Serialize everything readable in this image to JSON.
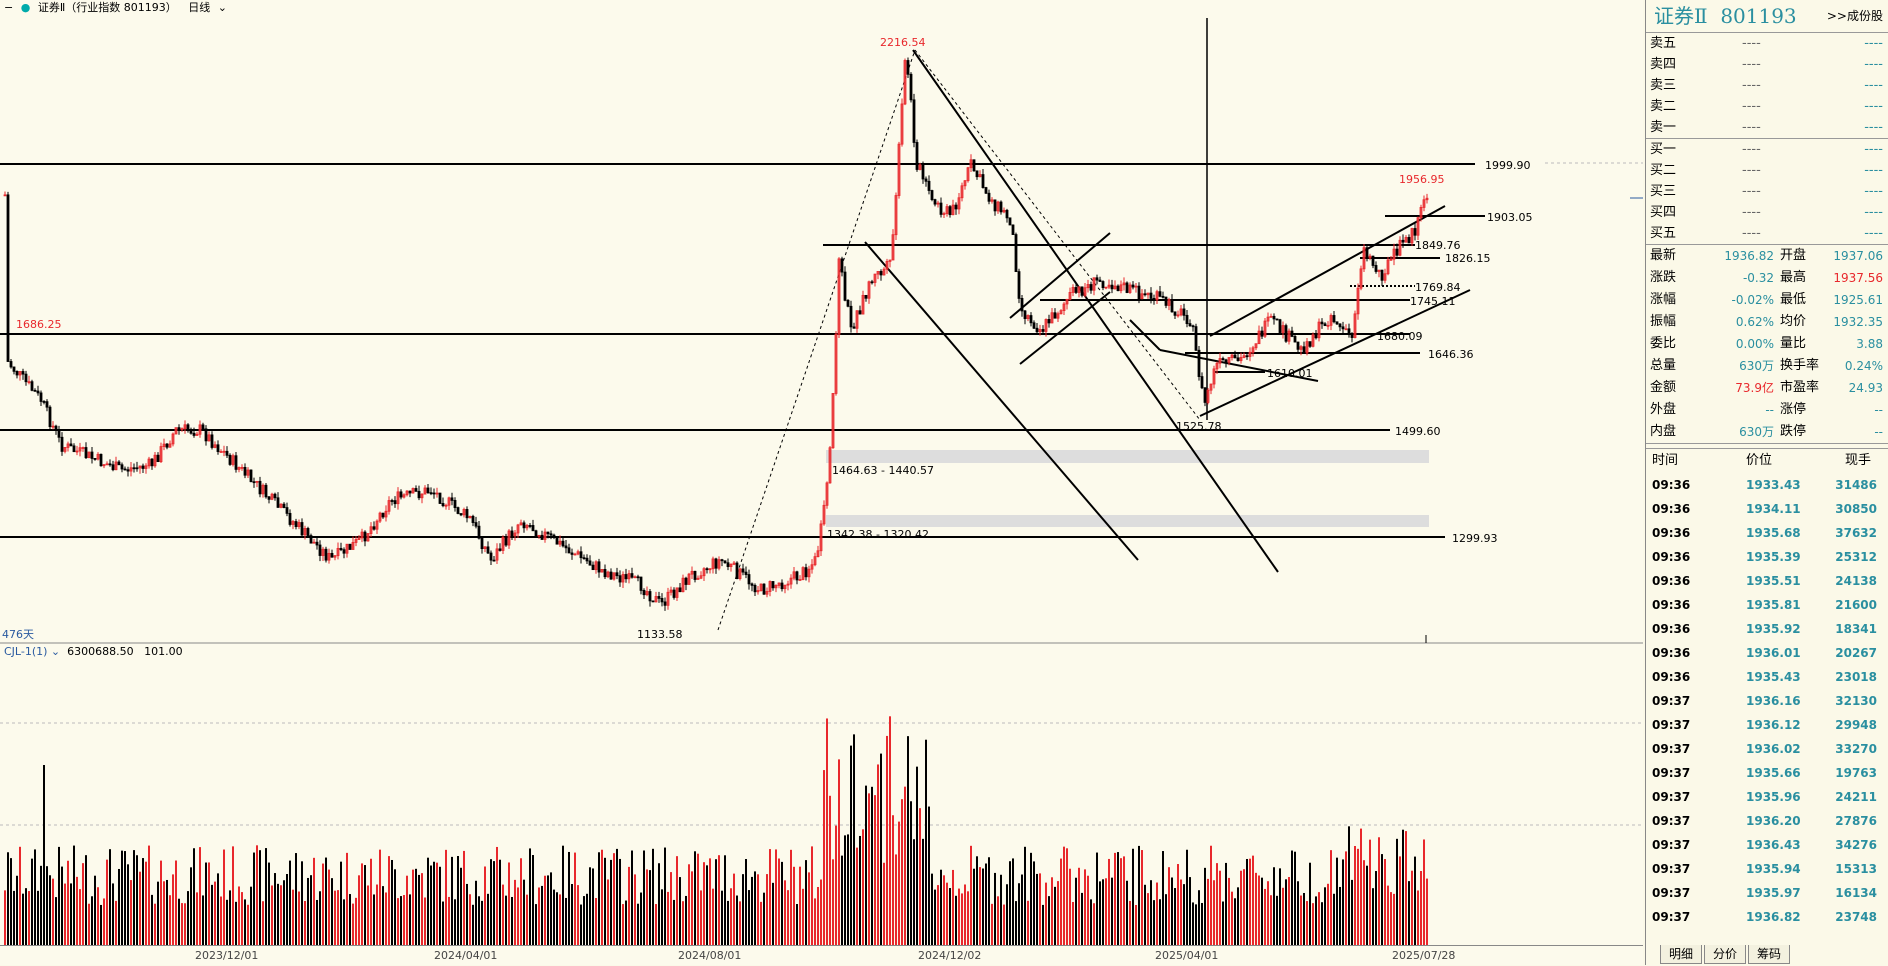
{
  "topbar": {
    "title": "证券Ⅱ（行业指数 801193）",
    "period": "日线"
  },
  "days_label": "476天",
  "chart_labels": {
    "high": "2216.54",
    "left_high": "1686.25",
    "low": "1133.58",
    "recent_high": "1956.95",
    "low2": "1525.78",
    "line_1999": "1999.90",
    "line_1903": "1903.05",
    "line_1849": "1849.76",
    "line_1826": "1826.15",
    "line_1769": "1769.84",
    "line_1745": "1745.11",
    "line_1680": "1680.09",
    "line_1646": "1646.36",
    "line_1610": "1610.01",
    "line_1499": "1499.60",
    "line_1299": "1299.93",
    "gap1": "1464.63 - 1440.57",
    "gap2": "1342.38 - 1320.42"
  },
  "volume_header": {
    "indicator": "CJL-1(1)",
    "value1": "6300688.50",
    "value2": "101.00"
  },
  "date_axis": [
    "2023/12/01",
    "2024/04/01",
    "2024/08/01",
    "2024/12/02",
    "2025/04/01",
    "2025/07/28"
  ],
  "right_panel": {
    "name": "证券Ⅱ",
    "code": "801193",
    "link": ">>成份股",
    "orderbook": [
      {
        "label": "卖五",
        "price": "----",
        "vol": "----"
      },
      {
        "label": "卖四",
        "price": "----",
        "vol": "----"
      },
      {
        "label": "卖三",
        "price": "----",
        "vol": "----"
      },
      {
        "label": "卖二",
        "price": "----",
        "vol": "----"
      },
      {
        "label": "卖一",
        "price": "----",
        "vol": "----"
      },
      {
        "label": "买一",
        "price": "----",
        "vol": "----"
      },
      {
        "label": "买二",
        "price": "----",
        "vol": "----"
      },
      {
        "label": "买三",
        "price": "----",
        "vol": "----"
      },
      {
        "label": "买四",
        "price": "----",
        "vol": "----"
      },
      {
        "label": "买五",
        "price": "----",
        "vol": "----"
      }
    ],
    "quotes": [
      {
        "l1": "最新",
        "v1": "1936.82",
        "c1": "teal",
        "l2": "开盘",
        "v2": "1937.06",
        "c2": "teal"
      },
      {
        "l1": "涨跌",
        "v1": "-0.32",
        "c1": "teal",
        "l2": "最高",
        "v2": "1937.56",
        "c2": "red"
      },
      {
        "l1": "涨幅",
        "v1": "-0.02%",
        "c1": "teal",
        "l2": "最低",
        "v2": "1925.61",
        "c2": "teal"
      },
      {
        "l1": "振幅",
        "v1": "0.62%",
        "c1": "teal",
        "l2": "均价",
        "v2": "1932.35",
        "c2": "teal"
      },
      {
        "l1": "委比",
        "v1": "0.00%",
        "c1": "teal",
        "l2": "量比",
        "v2": "3.88",
        "c2": "teal"
      },
      {
        "l1": "总量",
        "v1": "630万",
        "c1": "teal",
        "l2": "换手率",
        "v2": "0.24%",
        "c2": "teal"
      },
      {
        "l1": "金额",
        "v1": "73.9亿",
        "c1": "red",
        "l2": "市盈率",
        "v2": "24.93",
        "c2": "teal"
      },
      {
        "l1": "外盘",
        "v1": "--",
        "c1": "teal",
        "l2": "涨停",
        "v2": "--",
        "c2": "teal"
      },
      {
        "l1": "内盘",
        "v1": "630万",
        "c1": "teal",
        "l2": "跌停",
        "v2": "--",
        "c2": "teal"
      }
    ],
    "ticks_header": {
      "time": "时间",
      "price": "价位",
      "vol": "现手"
    },
    "ticks": [
      {
        "t": "09:36",
        "p": "1933.43",
        "v": "31486"
      },
      {
        "t": "09:36",
        "p": "1934.11",
        "v": "30850"
      },
      {
        "t": "09:36",
        "p": "1935.68",
        "v": "37632"
      },
      {
        "t": "09:36",
        "p": "1935.39",
        "v": "25312"
      },
      {
        "t": "09:36",
        "p": "1935.51",
        "v": "24138"
      },
      {
        "t": "09:36",
        "p": "1935.81",
        "v": "21600"
      },
      {
        "t": "09:36",
        "p": "1935.92",
        "v": "18341"
      },
      {
        "t": "09:36",
        "p": "1936.01",
        "v": "20267"
      },
      {
        "t": "09:36",
        "p": "1935.43",
        "v": "23018"
      },
      {
        "t": "09:37",
        "p": "1936.16",
        "v": "32130"
      },
      {
        "t": "09:37",
        "p": "1936.12",
        "v": "29948"
      },
      {
        "t": "09:37",
        "p": "1936.02",
        "v": "33270"
      },
      {
        "t": "09:37",
        "p": "1935.66",
        "v": "19763"
      },
      {
        "t": "09:37",
        "p": "1935.96",
        "v": "24211"
      },
      {
        "t": "09:37",
        "p": "1936.20",
        "v": "27876"
      },
      {
        "t": "09:37",
        "p": "1936.43",
        "v": "34276"
      },
      {
        "t": "09:37",
        "p": "1935.94",
        "v": "15313"
      },
      {
        "t": "09:37",
        "p": "1935.97",
        "v": "16134"
      },
      {
        "t": "09:37",
        "p": "1936.82",
        "v": "23748"
      }
    ],
    "tabs": [
      "明细",
      "分价",
      "筹码"
    ]
  },
  "colors": {
    "up": "#e8282c",
    "down": "#000000",
    "accent": "#2a8fa0",
    "bg": "#fcfaec"
  }
}
